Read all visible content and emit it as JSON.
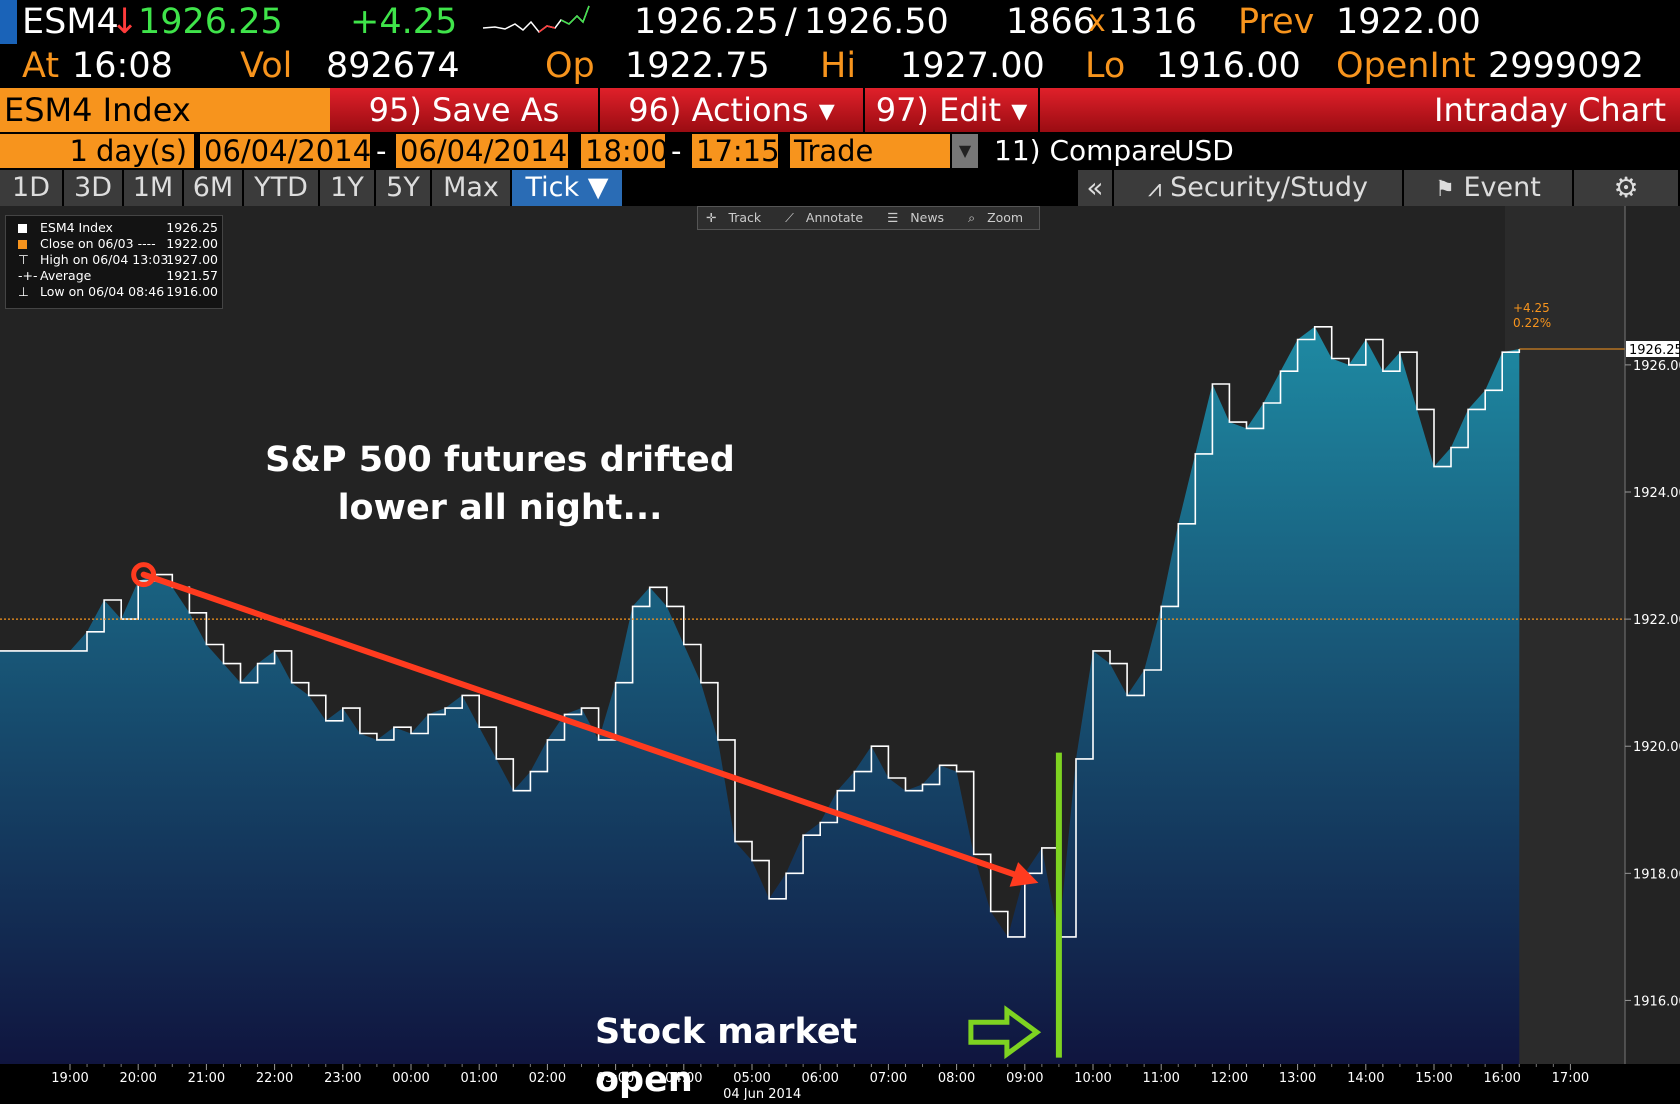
{
  "quote": {
    "ticker": "ESM4",
    "arrow": "↓",
    "last": "1926.25",
    "change": "+4.25",
    "bid": "1926.25",
    "slash": "/",
    "ask": "1926.50",
    "bid_size": "1866",
    "x": "x",
    "ask_size": "1316",
    "prev_label": "Prev",
    "prev": "1922.00",
    "at_label": "At",
    "time": "16:08",
    "vol_label": "Vol",
    "vol": "892674",
    "op_label": "Op",
    "op": "1922.75",
    "hi_label": "Hi",
    "hi": "1927.00",
    "lo_label": "Lo",
    "lo": "1916.00",
    "oi_label": "OpenInt",
    "oi": "2999092"
  },
  "menu": {
    "security": "ESM4 Index",
    "save_as": "95) Save As",
    "actions": "96) Actions ▾",
    "edit": "97) Edit ▾",
    "title": "Intraday Chart"
  },
  "controls": {
    "days": "1",
    "days_label": "day(s)",
    "date_from": "06/04/2014",
    "date_to": "06/04/2014",
    "time_from": "18:00",
    "time_to": "17:15",
    "dash": "-",
    "event_type": "Trade",
    "compare": "11) Compare",
    "currency": "USD"
  },
  "range_buttons": [
    "1D",
    "3D",
    "1M",
    "6M",
    "YTD",
    "1Y",
    "5Y",
    "Max",
    "Tick ▼"
  ],
  "right_buttons": {
    "collapse": "«",
    "security_study": "Security/Study",
    "event": "Event"
  },
  "toolbar": {
    "track": "Track",
    "annotate": "Annotate",
    "news": "News",
    "zoom": "Zoom"
  },
  "legend": [
    {
      "label": "ESM4 Index",
      "value": "1926.25"
    },
    {
      "label": "Close on 06/03 ----",
      "value": "1922.00"
    },
    {
      "label": "High on 06/04 13:03",
      "value": "1927.00"
    },
    {
      "label": "Average",
      "value": "1921.57"
    },
    {
      "label": "Low on 06/04 08:46",
      "value": "1916.00"
    }
  ],
  "annotations": {
    "drift_line1": "S&P 500 futures drifted",
    "drift_line2": "lower all night...",
    "open": "Stock market open",
    "last_change": "+4.25",
    "last_change_pct": "0.22%"
  },
  "colors": {
    "accent_orange": "#f7941d",
    "arrow_red": "#ff3b1f",
    "open_green": "#7ed321",
    "area_top": "#1e8aa3",
    "area_bottom": "#10153f"
  },
  "chart_data": {
    "type": "area",
    "ylim": [
      1915,
      1928.5
    ],
    "yticks": [
      "1916.00",
      "1918.00",
      "1920.00",
      "1922.00",
      "1924.00",
      "1926.00"
    ],
    "ytick_values": [
      1916,
      1918,
      1920,
      1922,
      1924,
      1926
    ],
    "xticks": [
      "19:00",
      "20:00",
      "21:00",
      "22:00",
      "23:00",
      "00:00",
      "01:00",
      "02:00",
      "03:00",
      "04:00",
      "05:00",
      "06:00",
      "07:00",
      "08:00",
      "09:00",
      "10:00",
      "11:00",
      "12:00",
      "13:00",
      "14:00",
      "15:00",
      "16:00",
      "17:00"
    ],
    "date_label": "04 Jun 2014",
    "prev_close": 1922.0,
    "last": 1926.25,
    "series": [
      {
        "x": [
          -0.0,
          0.25,
          0.5,
          0.75,
          1.0,
          1.25,
          1.5,
          1.75,
          2.0,
          2.25,
          2.5,
          2.75,
          3.0,
          3.25,
          3.5,
          3.75,
          4.0,
          4.25,
          4.5,
          4.75,
          5.0,
          5.25,
          5.5,
          5.75,
          6.0,
          6.25,
          6.5,
          6.75,
          7.0,
          7.25,
          7.5,
          7.75,
          8.0,
          8.25,
          8.5,
          8.75,
          9.0,
          9.25,
          9.5,
          9.75,
          10.0,
          10.25,
          10.5,
          10.75,
          11.0,
          11.25,
          11.5,
          11.75,
          12.0,
          12.25,
          12.5,
          12.75,
          13.0,
          13.25,
          13.5,
          13.75,
          14.0,
          14.25,
          14.5,
          14.75,
          15.0,
          15.25,
          15.5,
          15.75,
          16.0,
          16.25,
          16.5,
          16.75,
          17.0,
          17.25,
          17.5,
          17.75,
          18.0,
          18.25,
          18.5,
          18.75,
          19.0,
          19.25,
          19.5,
          19.75,
          20.0,
          20.25,
          20.5,
          20.75,
          21.0,
          21.25
        ],
        "values": [
          1921.5,
          1921.8,
          1922.3,
          1922.0,
          1922.6,
          1922.7,
          1922.5,
          1922.1,
          1921.6,
          1921.3,
          1921.0,
          1921.3,
          1921.5,
          1921.0,
          1920.8,
          1920.4,
          1920.6,
          1920.2,
          1920.1,
          1920.3,
          1920.2,
          1920.5,
          1920.6,
          1920.8,
          1920.3,
          1919.8,
          1919.3,
          1919.6,
          1920.1,
          1920.5,
          1920.6,
          1920.1,
          1921.0,
          1922.2,
          1922.5,
          1922.2,
          1921.6,
          1921.0,
          1920.1,
          1918.5,
          1918.2,
          1917.6,
          1918.0,
          1918.6,
          1918.8,
          1919.3,
          1919.6,
          1920.0,
          1919.5,
          1919.3,
          1919.4,
          1919.7,
          1919.6,
          1918.3,
          1917.4,
          1917.0,
          1918.0,
          1918.4,
          1917.0,
          1919.8,
          1921.5,
          1921.3,
          1920.8,
          1921.2,
          1922.2,
          1923.5,
          1924.6,
          1925.7,
          1925.1,
          1925.0,
          1925.4,
          1925.9,
          1926.4,
          1926.6,
          1926.1,
          1926.0,
          1926.4,
          1925.9,
          1926.2,
          1925.3,
          1924.4,
          1924.7,
          1925.3,
          1925.6,
          1926.2,
          1926.25
        ]
      }
    ]
  }
}
